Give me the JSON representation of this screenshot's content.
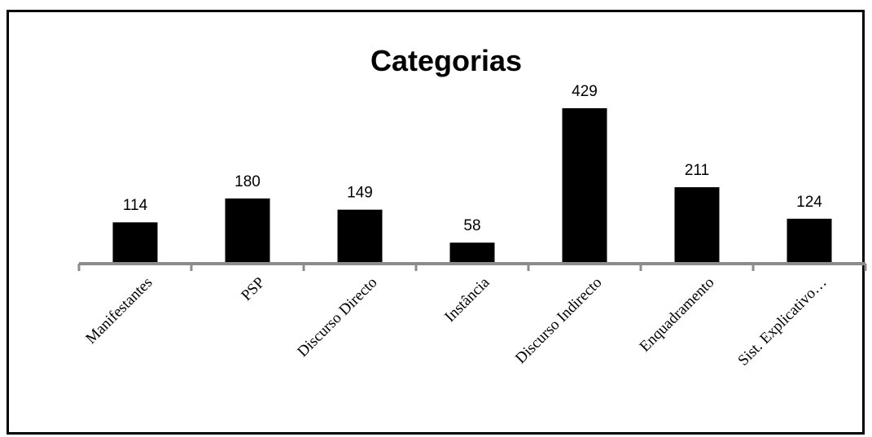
{
  "chart_data": {
    "type": "bar",
    "title": "Categorias",
    "categories": [
      "Manifestantes",
      "PSP",
      "Discurso Directo",
      "Instância",
      "Discurso Indirecto",
      "Enquadramento",
      "Sist. Explicativo…"
    ],
    "values": [
      114,
      180,
      149,
      58,
      429,
      211,
      124
    ],
    "xlabel": "",
    "ylabel": "",
    "grid": false,
    "legend": "none",
    "bar_color": "#000000",
    "axis_color": "#8c8c8c"
  }
}
